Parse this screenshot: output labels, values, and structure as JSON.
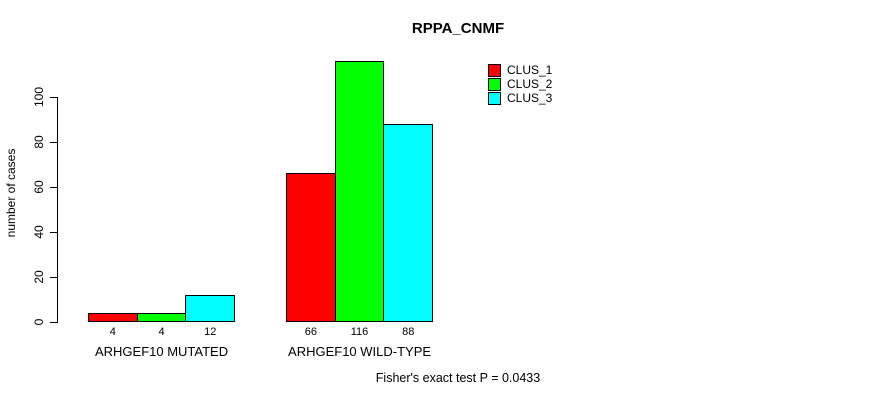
{
  "title": "RPPA_CNMF",
  "chart_data": {
    "type": "bar",
    "title": "RPPA_CNMF",
    "xlabel": "",
    "ylabel": "number of cases",
    "categories": [
      "ARHGEF10 MUTATED",
      "ARHGEF10 WILD-TYPE"
    ],
    "series": [
      {
        "name": "CLUS_1",
        "color": "#FF0000",
        "values": [
          4,
          66
        ]
      },
      {
        "name": "CLUS_2",
        "color": "#00FF00",
        "values": [
          4,
          116
        ]
      },
      {
        "name": "CLUS_3",
        "color": "#00FFFF",
        "values": [
          12,
          88
        ]
      }
    ],
    "bar_value_labels": [
      [
        "4",
        "4",
        "12"
      ],
      [
        "66",
        "116",
        "88"
      ]
    ],
    "yticks": [
      0,
      20,
      40,
      60,
      80,
      100
    ],
    "ylim": [
      0,
      116
    ],
    "grid": false,
    "legend_position": "top-right",
    "legend_entries": [
      "CLUS_1",
      "CLUS_2",
      "CLUS_3"
    ],
    "annotation": "Fisher's exact test P = 0.0433"
  },
  "colors": {
    "clus_1": "#FF0000",
    "clus_2": "#00FF00",
    "clus_3": "#00FFFF",
    "axis": "#000000",
    "background": "#FFFFFF"
  }
}
